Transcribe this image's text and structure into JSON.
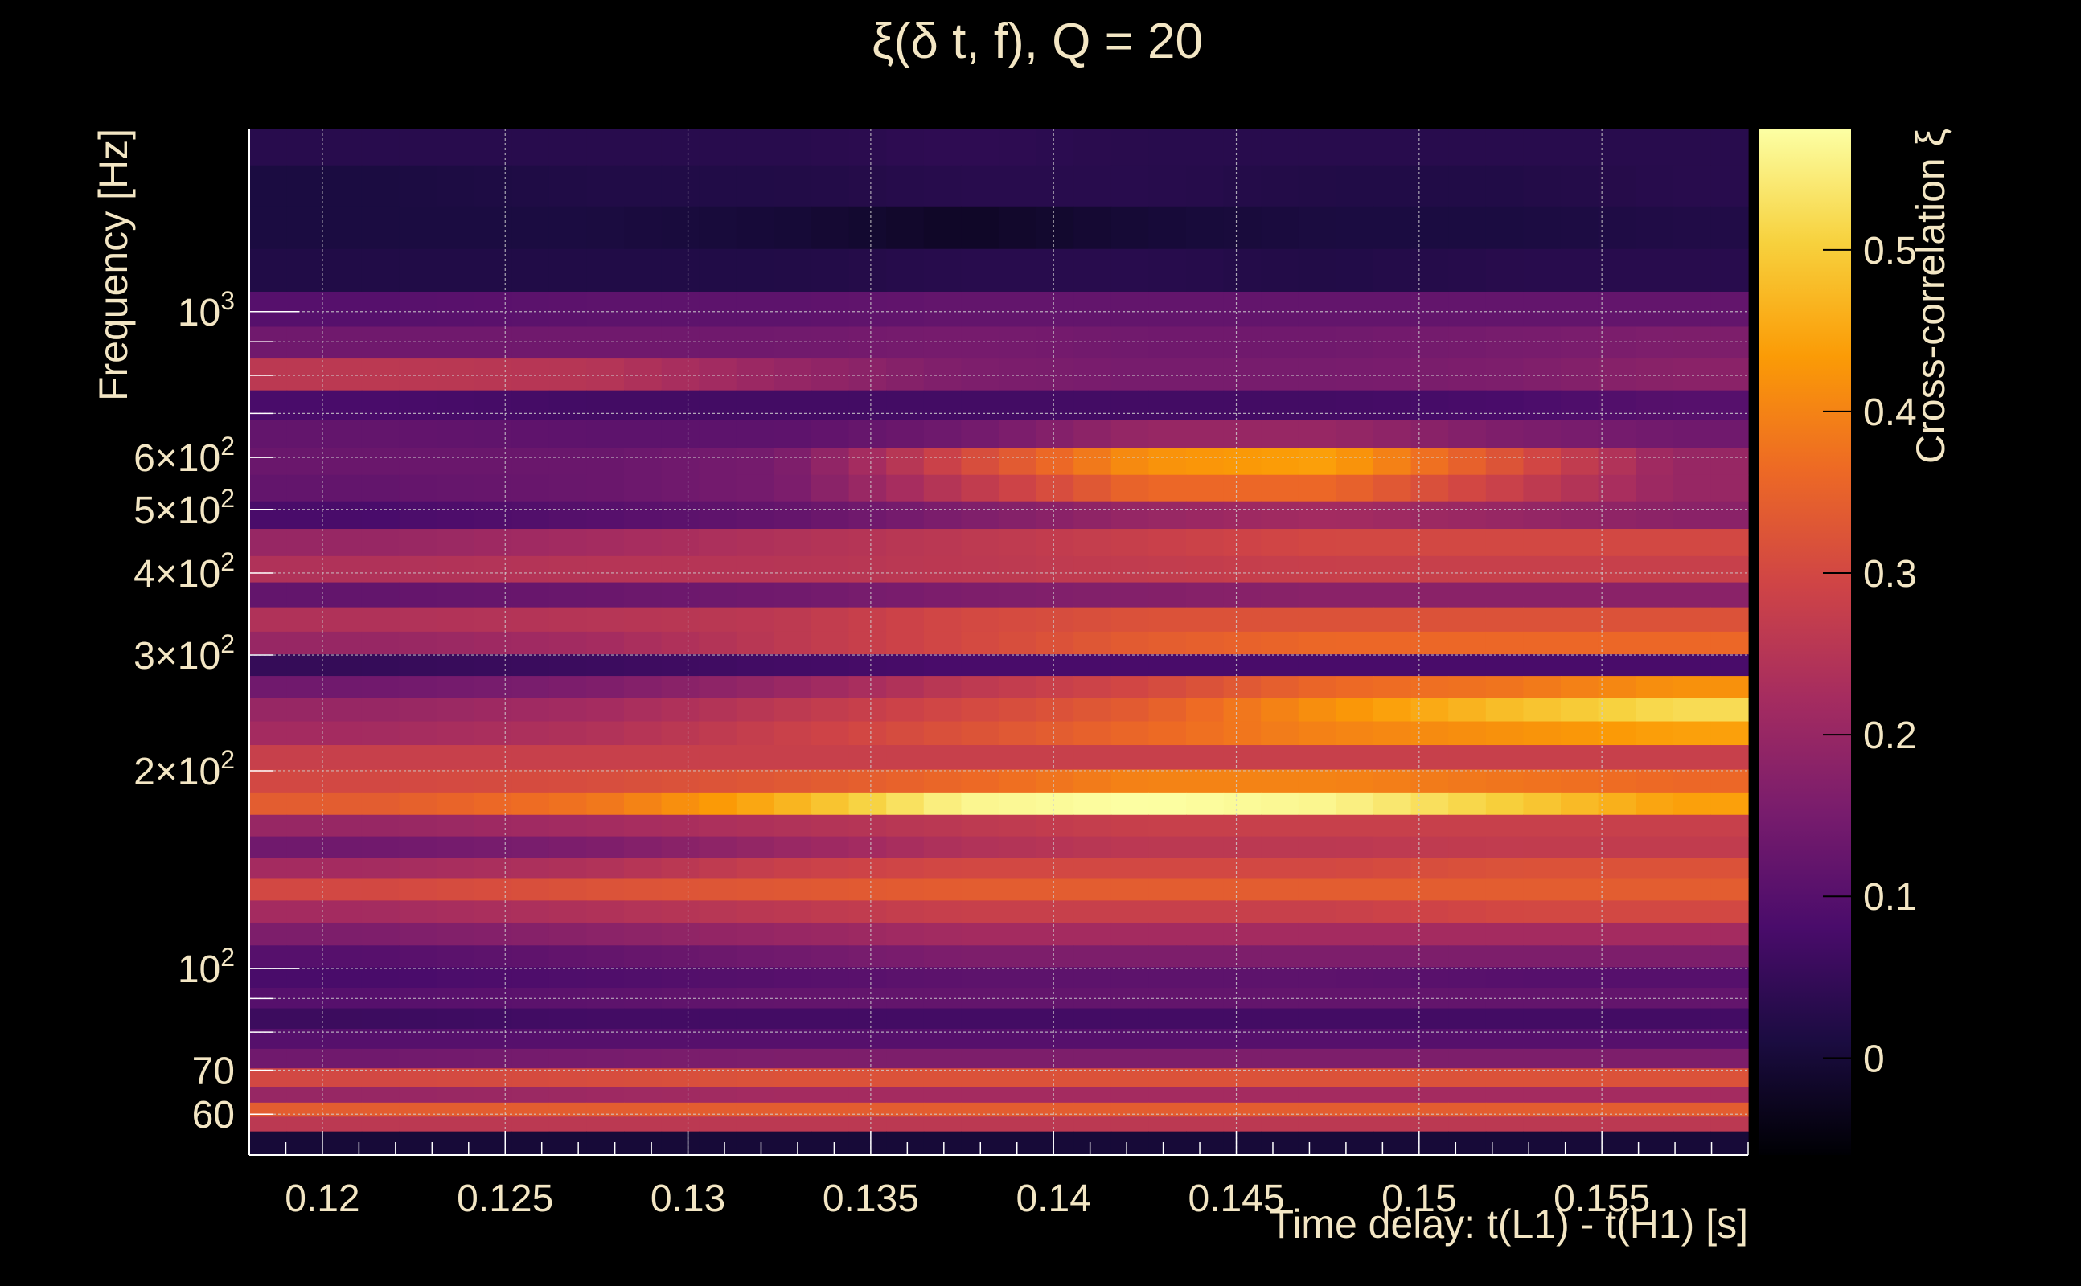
{
  "chart_data": {
    "type": "heatmap",
    "title": "ξ(δ t, f), Q = 20",
    "xlabel": "Time delay: t(L1) - t(H1) [s]",
    "ylabel": "Frequency [Hz]",
    "colorbar_label": "Cross-correlation ξ",
    "xlim": [
      0.118,
      0.159
    ],
    "ylim": [
      52,
      1900
    ],
    "y_scale": "log",
    "grid": true,
    "x_ticks": [
      0.12,
      0.125,
      0.13,
      0.135,
      0.14,
      0.145,
      0.15,
      0.155
    ],
    "x_tick_labels": [
      "0.12",
      "0.125",
      "0.13",
      "0.135",
      "0.14",
      "0.145",
      "0.15",
      "0.155"
    ],
    "y_tick_labels": [
      {
        "mant": "",
        "base": "10",
        "exp": "3",
        "value": 1000
      },
      {
        "mant": "6×",
        "base": "10",
        "exp": "2",
        "value": 600
      },
      {
        "mant": "5×",
        "base": "10",
        "exp": "2",
        "value": 500
      },
      {
        "mant": "4×",
        "base": "10",
        "exp": "2",
        "value": 400
      },
      {
        "mant": "3×",
        "base": "10",
        "exp": "2",
        "value": 300
      },
      {
        "mant": "2×",
        "base": "10",
        "exp": "2",
        "value": 200
      },
      {
        "mant": "",
        "base": "10",
        "exp": "2",
        "value": 100
      },
      {
        "mant": "70",
        "base": "",
        "exp": "",
        "value": 70
      },
      {
        "mant": "60",
        "base": "",
        "exp": "",
        "value": 60
      }
    ],
    "colorbar_range": [
      -0.06,
      0.575
    ],
    "colorbar_ticks": [
      0,
      0.1,
      0.2,
      0.3,
      0.4,
      0.5
    ],
    "colorbar_tick_labels": [
      "0",
      "0.1",
      "0.2",
      "0.3",
      "0.4",
      "0.5"
    ],
    "colormap": [
      "#000004",
      "#1b0c41",
      "#4a0c6b",
      "#781c6d",
      "#a52c60",
      "#cf4446",
      "#ed6925",
      "#fb9b06",
      "#f7d13d",
      "#fcffa4"
    ],
    "plot_colors": {
      "background": "#000000",
      "text": "#f3e6c4",
      "grid": "#cfcfcf"
    },
    "x_edges": [
      0.118,
      0.125,
      0.13,
      0.135,
      0.14,
      0.145,
      0.15,
      0.155,
      0.159
    ],
    "band_centers_hz": [
      1800,
      1550,
      1350,
      1150,
      1000,
      900,
      800,
      720,
      650,
      590,
      540,
      490,
      445,
      405,
      370,
      340,
      312,
      290,
      268,
      248,
      228,
      210,
      192,
      178,
      165,
      153,
      142,
      132,
      122,
      113,
      104,
      97,
      90,
      84,
      78,
      73,
      68,
      64,
      61,
      58,
      55
    ],
    "values": [
      [
        0.03,
        0.03,
        0.03,
        0.04,
        0.03,
        0.03,
        0.03,
        0.03
      ],
      [
        0.01,
        0.02,
        0.02,
        0.03,
        0.03,
        0.02,
        0.02,
        0.03
      ],
      [
        0.01,
        0.01,
        0.0,
        -0.02,
        0.0,
        0.01,
        0.01,
        0.02
      ],
      [
        0.02,
        0.02,
        0.02,
        0.03,
        0.03,
        0.02,
        0.03,
        0.03
      ],
      [
        0.1,
        0.11,
        0.11,
        0.12,
        0.12,
        0.12,
        0.12,
        0.12
      ],
      [
        0.14,
        0.14,
        0.14,
        0.15,
        0.14,
        0.14,
        0.15,
        0.16
      ],
      [
        0.26,
        0.25,
        0.2,
        0.16,
        0.15,
        0.15,
        0.16,
        0.18
      ],
      [
        0.08,
        0.07,
        0.07,
        0.07,
        0.07,
        0.07,
        0.08,
        0.1
      ],
      [
        0.12,
        0.11,
        0.11,
        0.14,
        0.2,
        0.2,
        0.16,
        0.14
      ],
      [
        0.13,
        0.13,
        0.15,
        0.3,
        0.42,
        0.44,
        0.32,
        0.2
      ],
      [
        0.12,
        0.13,
        0.15,
        0.26,
        0.36,
        0.36,
        0.28,
        0.2
      ],
      [
        0.08,
        0.1,
        0.12,
        0.16,
        0.2,
        0.22,
        0.2,
        0.18
      ],
      [
        0.2,
        0.22,
        0.24,
        0.26,
        0.28,
        0.3,
        0.3,
        0.3
      ],
      [
        0.24,
        0.25,
        0.25,
        0.26,
        0.27,
        0.28,
        0.28,
        0.28
      ],
      [
        0.12,
        0.13,
        0.14,
        0.16,
        0.17,
        0.18,
        0.18,
        0.18
      ],
      [
        0.24,
        0.25,
        0.26,
        0.3,
        0.32,
        0.32,
        0.32,
        0.32
      ],
      [
        0.2,
        0.22,
        0.26,
        0.3,
        0.34,
        0.36,
        0.36,
        0.36
      ],
      [
        0.05,
        0.06,
        0.07,
        0.08,
        0.08,
        0.08,
        0.08,
        0.08
      ],
      [
        0.14,
        0.16,
        0.2,
        0.26,
        0.3,
        0.36,
        0.38,
        0.42
      ],
      [
        0.2,
        0.22,
        0.26,
        0.3,
        0.34,
        0.42,
        0.48,
        0.52
      ],
      [
        0.22,
        0.24,
        0.28,
        0.32,
        0.36,
        0.4,
        0.42,
        0.44
      ],
      [
        0.28,
        0.28,
        0.28,
        0.28,
        0.28,
        0.28,
        0.28,
        0.28
      ],
      [
        0.3,
        0.31,
        0.33,
        0.36,
        0.4,
        0.4,
        0.38,
        0.36
      ],
      [
        0.34,
        0.38,
        0.46,
        0.56,
        0.575,
        0.56,
        0.5,
        0.44
      ],
      [
        0.2,
        0.22,
        0.24,
        0.26,
        0.28,
        0.28,
        0.28,
        0.28
      ],
      [
        0.14,
        0.16,
        0.2,
        0.24,
        0.26,
        0.26,
        0.27,
        0.27
      ],
      [
        0.22,
        0.24,
        0.28,
        0.3,
        0.3,
        0.3,
        0.32,
        0.32
      ],
      [
        0.3,
        0.32,
        0.33,
        0.34,
        0.34,
        0.34,
        0.34,
        0.34
      ],
      [
        0.22,
        0.24,
        0.26,
        0.28,
        0.28,
        0.28,
        0.3,
        0.3
      ],
      [
        0.16,
        0.18,
        0.2,
        0.22,
        0.22,
        0.22,
        0.22,
        0.22
      ],
      [
        0.1,
        0.12,
        0.14,
        0.16,
        0.16,
        0.16,
        0.16,
        0.16
      ],
      [
        0.08,
        0.09,
        0.1,
        0.11,
        0.11,
        0.11,
        0.1,
        0.1
      ],
      [
        0.1,
        0.11,
        0.12,
        0.12,
        0.12,
        0.12,
        0.12,
        0.12
      ],
      [
        0.06,
        0.07,
        0.07,
        0.07,
        0.07,
        0.07,
        0.07,
        0.07
      ],
      [
        0.1,
        0.1,
        0.1,
        0.1,
        0.1,
        0.1,
        0.1,
        0.1
      ],
      [
        0.14,
        0.15,
        0.16,
        0.16,
        0.16,
        0.16,
        0.16,
        0.16
      ],
      [
        0.3,
        0.31,
        0.32,
        0.32,
        0.32,
        0.32,
        0.32,
        0.32
      ],
      [
        0.2,
        0.21,
        0.22,
        0.22,
        0.22,
        0.22,
        0.22,
        0.22
      ],
      [
        0.34,
        0.34,
        0.34,
        0.34,
        0.34,
        0.34,
        0.34,
        0.34
      ],
      [
        0.26,
        0.26,
        0.26,
        0.26,
        0.26,
        0.26,
        0.26,
        0.26
      ],
      [
        0.0,
        0.0,
        0.0,
        0.0,
        0.0,
        0.0,
        0.0,
        0.0
      ]
    ]
  }
}
